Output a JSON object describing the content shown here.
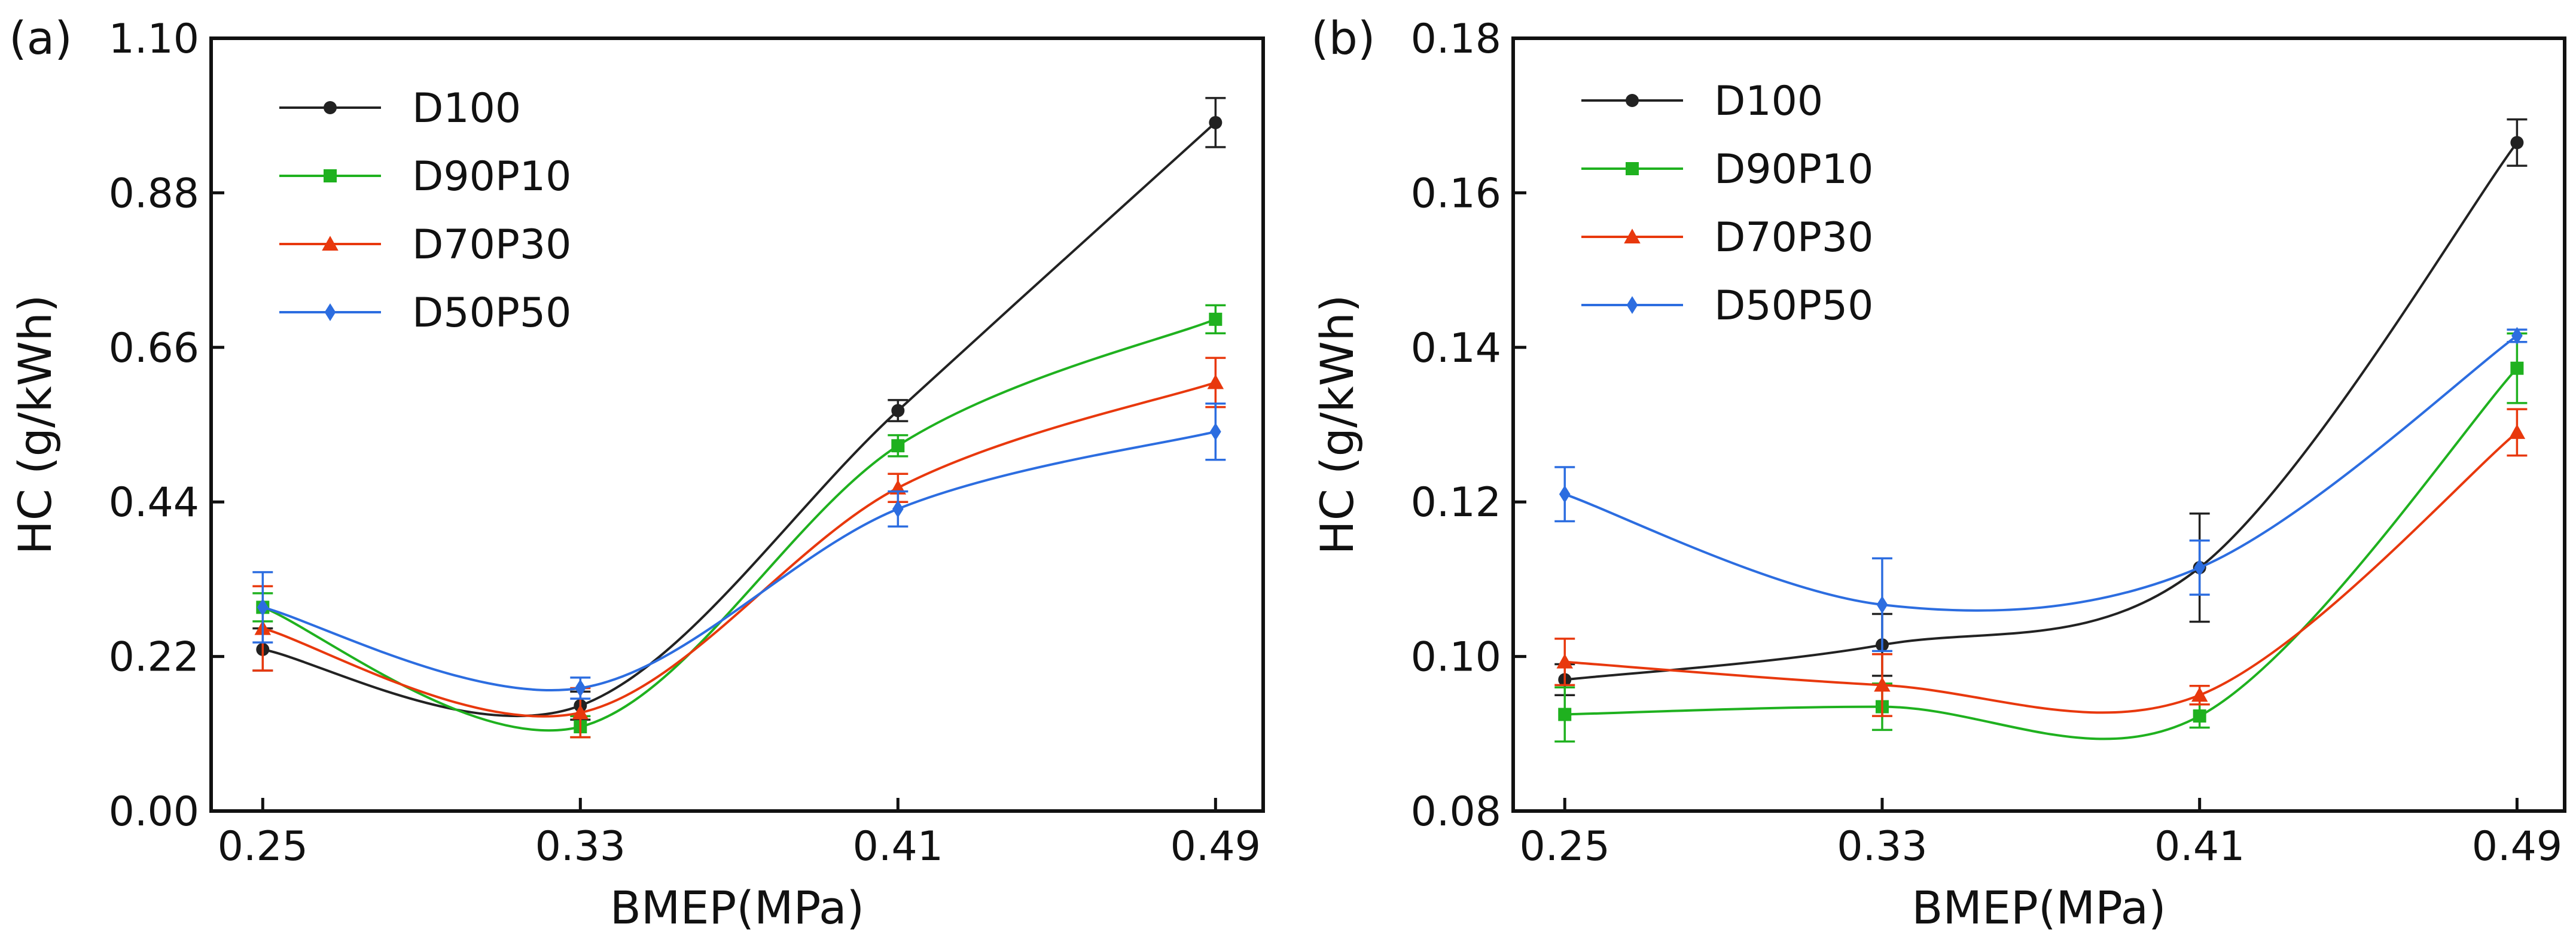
{
  "chart_data": [
    {
      "type": "line",
      "panel_label": "(a)",
      "title": "",
      "xlabel": "BMEP(MPa)",
      "ylabel": "HC (g/kWh)",
      "categories": [
        "0.25",
        "0.33",
        "0.41",
        "0.49"
      ],
      "x": [
        0.25,
        0.33,
        0.41,
        0.49
      ],
      "xlim": [
        0.237,
        0.502
      ],
      "ylim": [
        0.0,
        1.1
      ],
      "yticks": [
        0.0,
        0.22,
        0.44,
        0.66,
        0.88,
        1.1
      ],
      "ytick_labels": [
        "0.00",
        "0.22",
        "0.44",
        "0.66",
        "0.88",
        "1.10"
      ],
      "legend_position": "top-left",
      "grid": false,
      "series": [
        {
          "name": "D100",
          "color": "#222222",
          "marker": "circle",
          "values": [
            0.23,
            0.15,
            0.57,
            0.98
          ],
          "errors": [
            0.03,
            0.02,
            0.015,
            0.035
          ]
        },
        {
          "name": "D90P10",
          "color": "#1fb11f",
          "marker": "square",
          "values": [
            0.29,
            0.12,
            0.52,
            0.7
          ],
          "errors": [
            0.02,
            0.015,
            0.015,
            0.02
          ]
        },
        {
          "name": "D70P30",
          "color": "#e8380d",
          "marker": "triangle",
          "values": [
            0.26,
            0.14,
            0.46,
            0.61
          ],
          "errors": [
            0.06,
            0.035,
            0.02,
            0.035
          ]
        },
        {
          "name": "D50P50",
          "color": "#2c6de0",
          "marker": "diamond",
          "values": [
            0.29,
            0.175,
            0.43,
            0.54
          ],
          "errors": [
            0.05,
            0.015,
            0.025,
            0.04
          ]
        }
      ]
    },
    {
      "type": "line",
      "panel_label": "(b)",
      "title": "",
      "xlabel": "BMEP(MPa)",
      "ylabel": "HC (g/kWh)",
      "categories": [
        "0.25",
        "0.33",
        "0.41",
        "0.49"
      ],
      "x": [
        0.25,
        0.33,
        0.41,
        0.49
      ],
      "xlim": [
        0.237,
        0.502
      ],
      "ylim": [
        0.08,
        0.18
      ],
      "yticks": [
        0.08,
        0.1,
        0.12,
        0.14,
        0.16,
        0.18
      ],
      "ytick_labels": [
        "0.08",
        "0.10",
        "0.12",
        "0.14",
        "0.16",
        "0.18"
      ],
      "legend_position": "top-left",
      "grid": false,
      "series": [
        {
          "name": "D100",
          "color": "#222222",
          "marker": "circle",
          "values": [
            0.097,
            0.1015,
            0.1115,
            0.1665
          ],
          "errors": [
            0.002,
            0.004,
            0.007,
            0.003
          ]
        },
        {
          "name": "D90P10",
          "color": "#1fb11f",
          "marker": "square",
          "values": [
            0.0925,
            0.0935,
            0.0923,
            0.1373
          ],
          "errors": [
            0.0035,
            0.003,
            0.0015,
            0.0045
          ]
        },
        {
          "name": "D70P30",
          "color": "#e8380d",
          "marker": "triangle",
          "values": [
            0.0993,
            0.0963,
            0.095,
            0.129
          ],
          "errors": [
            0.003,
            0.004,
            0.0012,
            0.003
          ]
        },
        {
          "name": "D50P50",
          "color": "#2c6de0",
          "marker": "diamond",
          "values": [
            0.121,
            0.1067,
            0.1115,
            0.1415
          ],
          "errors": [
            0.0035,
            0.006,
            0.0035,
            0.0008
          ]
        }
      ]
    }
  ]
}
